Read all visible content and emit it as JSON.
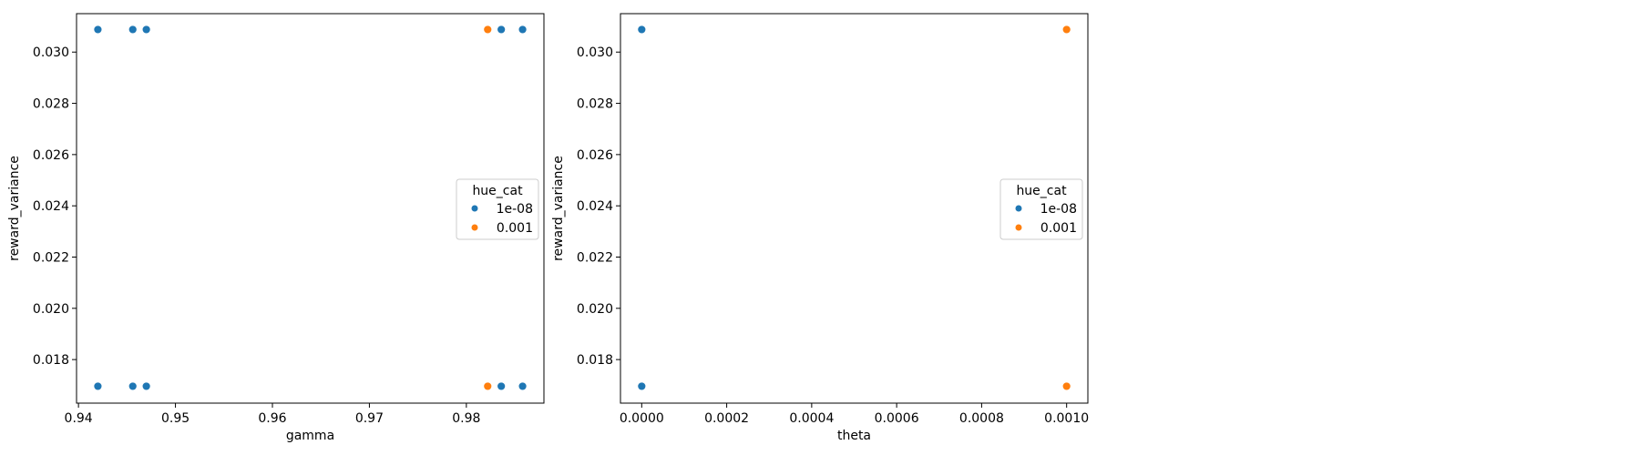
{
  "colors": {
    "series_blue": "#1f77b4",
    "series_orange": "#ff7f0e",
    "axis": "#000000",
    "legend_border": "#cccccc"
  },
  "chart_data": [
    {
      "type": "scatter",
      "xlabel": "gamma",
      "ylabel": "reward_variance",
      "xlim": [
        0.9398,
        0.988
      ],
      "ylim": [
        0.0163,
        0.0315
      ],
      "xticks": [
        "0.94",
        "0.95",
        "0.96",
        "0.97",
        "0.98"
      ],
      "xtick_values": [
        0.94,
        0.95,
        0.96,
        0.97,
        0.98
      ],
      "yticks": [
        "0.018",
        "0.020",
        "0.022",
        "0.024",
        "0.026",
        "0.028",
        "0.030"
      ],
      "ytick_values": [
        0.018,
        0.02,
        0.022,
        0.024,
        0.026,
        0.028,
        0.03
      ],
      "grid": false,
      "legend": {
        "title": "hue_cat",
        "placement": "center-right"
      },
      "series": [
        {
          "name": "1e-08",
          "color": "#1f77b4",
          "points": [
            [
              0.942,
              0.03088
            ],
            [
              0.9456,
              0.03088
            ],
            [
              0.947,
              0.03088
            ],
            [
              0.9836,
              0.03088
            ],
            [
              0.9858,
              0.03088
            ],
            [
              0.942,
              0.01696
            ],
            [
              0.9456,
              0.01696
            ],
            [
              0.947,
              0.01696
            ],
            [
              0.9836,
              0.01696
            ],
            [
              0.9858,
              0.01696
            ]
          ]
        },
        {
          "name": "0.001",
          "color": "#ff7f0e",
          "points": [
            [
              0.9822,
              0.03088
            ],
            [
              0.9822,
              0.01696
            ]
          ]
        }
      ]
    },
    {
      "type": "scatter",
      "xlabel": "theta",
      "ylabel": "reward_variance",
      "xlim": [
        -5e-05,
        0.00105
      ],
      "ylim": [
        0.0163,
        0.0315
      ],
      "xticks": [
        "0.0000",
        "0.0002",
        "0.0004",
        "0.0006",
        "0.0008",
        "0.0010"
      ],
      "xtick_values": [
        0.0,
        0.0002,
        0.0004,
        0.0006,
        0.0008,
        0.001
      ],
      "yticks": [
        "0.018",
        "0.020",
        "0.022",
        "0.024",
        "0.026",
        "0.028",
        "0.030"
      ],
      "ytick_values": [
        0.018,
        0.02,
        0.022,
        0.024,
        0.026,
        0.028,
        0.03
      ],
      "grid": false,
      "legend": {
        "title": "hue_cat",
        "placement": "center-right"
      },
      "series": [
        {
          "name": "1e-08",
          "color": "#1f77b4",
          "points": [
            [
              1e-08,
              0.03088
            ],
            [
              1e-08,
              0.01696
            ]
          ]
        },
        {
          "name": "0.001",
          "color": "#ff7f0e",
          "points": [
            [
              0.001,
              0.03088
            ],
            [
              0.001,
              0.01696
            ]
          ]
        }
      ]
    }
  ]
}
